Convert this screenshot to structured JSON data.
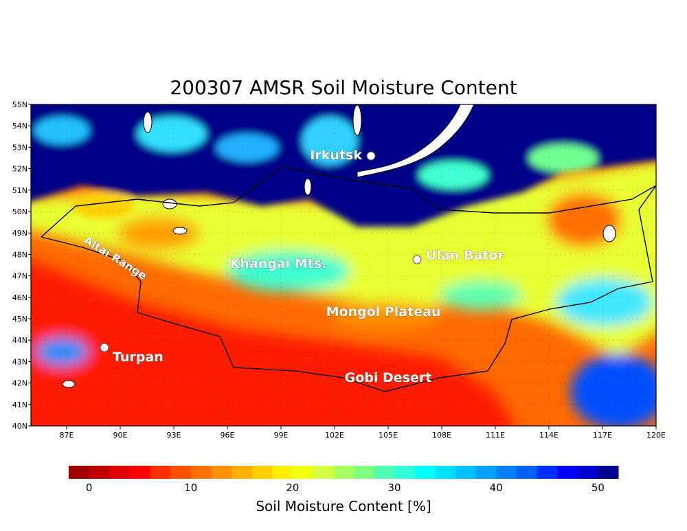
{
  "map": {
    "title": "200307 AMSR Soil Moisture Content",
    "xlim": [
      85,
      120
    ],
    "ylim": [
      40,
      55
    ],
    "lon_ticks": [
      {
        "value": 87,
        "label": "87E"
      },
      {
        "value": 90,
        "label": "90E"
      },
      {
        "value": 93,
        "label": "93E"
      },
      {
        "value": 96,
        "label": "96E"
      },
      {
        "value": 99,
        "label": "99E"
      },
      {
        "value": 102,
        "label": "102E"
      },
      {
        "value": 105,
        "label": "105E"
      },
      {
        "value": 108,
        "label": "108E"
      },
      {
        "value": 111,
        "label": "111E"
      },
      {
        "value": 114,
        "label": "114E"
      },
      {
        "value": 117,
        "label": "117E"
      },
      {
        "value": 120,
        "label": "120E"
      }
    ],
    "lat_ticks": [
      {
        "value": 40,
        "label": "40N"
      },
      {
        "value": 41,
        "label": "41N"
      },
      {
        "value": 42,
        "label": "42N"
      },
      {
        "value": 43,
        "label": "43N"
      },
      {
        "value": 44,
        "label": "44N"
      },
      {
        "value": 45,
        "label": "45N"
      },
      {
        "value": 46,
        "label": "46N"
      },
      {
        "value": 47,
        "label": "47N"
      },
      {
        "value": 48,
        "label": "48N"
      },
      {
        "value": 49,
        "label": "49N"
      },
      {
        "value": 50,
        "label": "50N"
      },
      {
        "value": 51,
        "label": "51N"
      },
      {
        "value": 52,
        "label": "52N"
      },
      {
        "value": 53,
        "label": "53N"
      },
      {
        "value": 54,
        "label": "54N"
      },
      {
        "value": 55,
        "label": "55N"
      }
    ],
    "places": [
      {
        "label": "Irkutsk",
        "marker": true
      },
      {
        "label": "Ulan Bator",
        "marker": true
      },
      {
        "label": "Turpan",
        "marker": true
      },
      {
        "label": "Altai Range",
        "marker": false
      },
      {
        "label": "Khangai Mts.",
        "marker": false
      },
      {
        "label": "Mongol Plateau",
        "marker": false
      },
      {
        "label": "Gobi Desert",
        "marker": false
      }
    ],
    "colorbar": {
      "label": "Soil Moisture Content [%]",
      "range": [
        -2,
        52
      ],
      "ticks": [
        0,
        10,
        20,
        30,
        40,
        50
      ],
      "colors": [
        "#a00000",
        "#c00000",
        "#e00000",
        "#ff0000",
        "#ff3000",
        "#ff5000",
        "#ff7000",
        "#ff9000",
        "#ffb000",
        "#ffd000",
        "#ffee00",
        "#f0ff10",
        "#d0ff40",
        "#a8ff60",
        "#80ff80",
        "#50ffb0",
        "#30ffd8",
        "#00ffff",
        "#00e0ff",
        "#00c0ff",
        "#00a0ff",
        "#0080ff",
        "#0060ff",
        "#0030ff",
        "#0000ff",
        "#0000d0",
        "#000090"
      ]
    }
  }
}
